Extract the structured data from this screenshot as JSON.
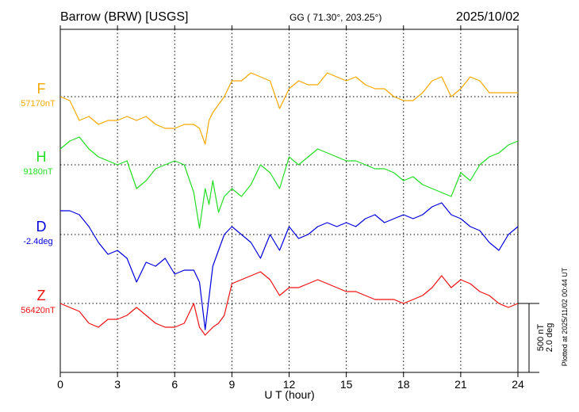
{
  "header": {
    "station": "Barrow (BRW)  [USGS]",
    "coords": "GG ( 71.30°, 203.25°)",
    "date": "2025/10/02"
  },
  "footnote": "Plotted at 2025/11/02 00:44 UT",
  "chart_data": {
    "type": "line",
    "xlabel": "U T (hour)",
    "xlim": [
      0,
      24
    ],
    "xticks": [
      "0",
      "3",
      "6",
      "9",
      "12",
      "15",
      "18",
      "21",
      "24"
    ],
    "scale_labels": [
      "500 nT",
      "2.0 deg"
    ],
    "grid": true,
    "series": [
      {
        "name": "F",
        "baseline_label": "57170nT",
        "color": "#f5a800",
        "x": [
          0,
          0.5,
          1,
          1.5,
          2,
          2.5,
          3,
          3.5,
          4,
          4.5,
          5,
          5.5,
          6,
          6.5,
          7,
          7.3,
          7.6,
          7.8,
          8,
          8.3,
          8.6,
          9,
          9.5,
          10,
          10.5,
          11,
          11.5,
          12,
          12.5,
          13,
          13.5,
          14,
          14.5,
          15,
          15.5,
          16,
          16.5,
          17,
          17.5,
          18,
          18.5,
          19,
          19.5,
          20,
          20.5,
          21,
          21.5,
          22,
          22.5,
          23,
          23.5,
          24
        ],
        "y": [
          0,
          -5,
          -30,
          -25,
          -35,
          -30,
          -30,
          -25,
          -30,
          -25,
          -35,
          -40,
          -40,
          -35,
          -35,
          -40,
          -60,
          -30,
          -20,
          -10,
          0,
          20,
          20,
          30,
          25,
          20,
          -15,
          10,
          20,
          15,
          15,
          30,
          25,
          20,
          25,
          15,
          10,
          10,
          0,
          -5,
          -5,
          5,
          20,
          25,
          0,
          10,
          25,
          20,
          5,
          5,
          5,
          5
        ]
      },
      {
        "name": "H",
        "baseline_label": "9180nT",
        "color": "#22dd22",
        "x": [
          0,
          0.5,
          1,
          1.5,
          2,
          2.5,
          3,
          3.5,
          4,
          4.5,
          5,
          5.5,
          6,
          6.5,
          7,
          7.3,
          7.6,
          7.8,
          8,
          8.3,
          8.6,
          9,
          9.5,
          10,
          10.5,
          11,
          11.5,
          12,
          12.5,
          13,
          13.5,
          14,
          14.5,
          15,
          15.5,
          16,
          16.5,
          17,
          17.5,
          18,
          18.5,
          19,
          19.5,
          20,
          20.5,
          21,
          21.5,
          22,
          22.5,
          23,
          23.5,
          24
        ],
        "y": [
          20,
          30,
          35,
          20,
          10,
          5,
          0,
          5,
          -30,
          -20,
          -5,
          0,
          5,
          0,
          -35,
          -80,
          -30,
          -50,
          -20,
          -60,
          -40,
          -30,
          -40,
          -25,
          0,
          -10,
          -30,
          10,
          0,
          10,
          20,
          15,
          10,
          5,
          5,
          0,
          -5,
          -5,
          -10,
          -20,
          -15,
          -25,
          -30,
          -35,
          -40,
          -10,
          -20,
          0,
          10,
          15,
          25,
          30
        ]
      },
      {
        "name": "D",
        "baseline_label": "-2.4deg",
        "color": "#0000dd",
        "x": [
          0,
          0.5,
          1,
          1.5,
          2,
          2.5,
          3,
          3.5,
          4,
          4.5,
          5,
          5.5,
          6,
          6.5,
          7,
          7.3,
          7.6,
          7.8,
          8,
          8.3,
          8.6,
          9,
          9.5,
          10,
          10.5,
          11,
          11.5,
          12,
          12.5,
          13,
          13.5,
          14,
          14.5,
          15,
          15.5,
          16,
          16.5,
          17,
          17.5,
          18,
          18.5,
          19,
          19.5,
          20,
          20.5,
          21,
          21.5,
          22,
          22.5,
          23,
          23.5,
          24
        ],
        "y": [
          30,
          30,
          25,
          10,
          -10,
          -25,
          -20,
          -30,
          -60,
          -35,
          -40,
          -30,
          -50,
          -45,
          -45,
          -60,
          -120,
          -80,
          -40,
          -20,
          0,
          10,
          0,
          -10,
          -30,
          0,
          -20,
          10,
          -5,
          0,
          10,
          15,
          10,
          15,
          10,
          20,
          25,
          15,
          20,
          25,
          20,
          25,
          35,
          40,
          25,
          20,
          10,
          5,
          -10,
          -20,
          0,
          10
        ]
      },
      {
        "name": "Z",
        "baseline_label": "56420nT",
        "color": "#ee1111",
        "x": [
          0,
          0.5,
          1,
          1.5,
          2,
          2.5,
          3,
          3.5,
          4,
          4.5,
          5,
          5.5,
          6,
          6.5,
          7,
          7.3,
          7.6,
          7.8,
          8,
          8.3,
          8.6,
          9,
          9.5,
          10,
          10.5,
          11,
          11.5,
          12,
          12.5,
          13,
          13.5,
          14,
          14.5,
          15,
          15.5,
          16,
          16.5,
          17,
          17.5,
          18,
          18.5,
          19,
          19.5,
          20,
          20.5,
          21,
          21.5,
          22,
          22.5,
          23,
          23.5,
          24
        ],
        "y": [
          0,
          -5,
          -10,
          -25,
          -30,
          -20,
          -20,
          -15,
          -5,
          -15,
          -25,
          -30,
          -30,
          -25,
          0,
          -30,
          -40,
          -35,
          -30,
          -25,
          -15,
          25,
          30,
          35,
          40,
          30,
          10,
          20,
          20,
          25,
          30,
          25,
          20,
          15,
          15,
          10,
          5,
          5,
          5,
          0,
          5,
          10,
          20,
          35,
          20,
          30,
          25,
          15,
          10,
          0,
          -5,
          0
        ]
      }
    ]
  }
}
